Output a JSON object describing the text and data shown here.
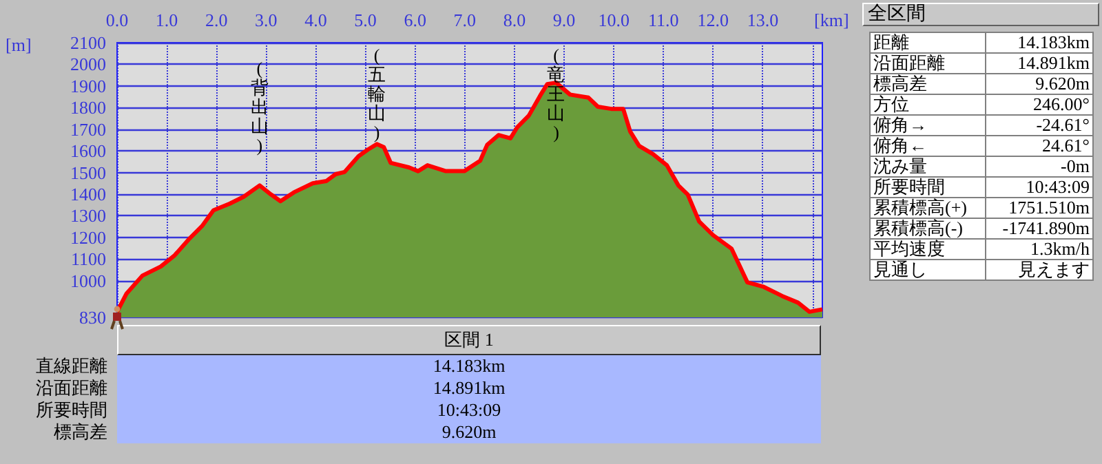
{
  "chart_data": [
    {
      "type": "area",
      "xlabel": "[km]",
      "ylabel": "[m]",
      "x": [
        0,
        0.19,
        0.51,
        0.88,
        1.16,
        1.44,
        1.71,
        1.94,
        2.27,
        2.55,
        2.87,
        3.1,
        3.29,
        3.56,
        3.94,
        4.21,
        4.4,
        4.58,
        4.86,
        5.05,
        5.23,
        5.37,
        5.51,
        5.88,
        6.06,
        6.25,
        6.62,
        6.99,
        7.31,
        7.45,
        7.68,
        7.92,
        8.06,
        8.29,
        8.52,
        8.66,
        8.84,
        9.12,
        9.49,
        9.68,
        9.95,
        10.19,
        10.33,
        10.51,
        10.79,
        11.07,
        11.3,
        11.49,
        11.72,
        12.0,
        12.37,
        12.69,
        13.02,
        13.39,
        13.71,
        13.94,
        14.2
      ],
      "series": [
        {
          "type": "area",
          "color": "#6a9c3a",
          "values": [
            856,
            940,
            1023,
            1065,
            1117,
            1190,
            1252,
            1325,
            1356,
            1388,
            1440,
            1398,
            1367,
            1408,
            1450,
            1460,
            1492,
            1502,
            1575,
            1606,
            1631,
            1617,
            1544,
            1523,
            1506,
            1533,
            1506,
            1506,
            1554,
            1627,
            1673,
            1658,
            1710,
            1763,
            1856,
            1908,
            1915,
            1860,
            1846,
            1804,
            1794,
            1794,
            1690,
            1623,
            1585,
            1533,
            1440,
            1398,
            1273,
            1210,
            1148,
            992,
            971,
            929,
            898,
            856,
            867
          ]
        },
        {
          "type": "line",
          "color": "#ff0000",
          "values": [
            856,
            940,
            1023,
            1065,
            1117,
            1190,
            1252,
            1325,
            1356,
            1388,
            1440,
            1398,
            1367,
            1408,
            1450,
            1460,
            1492,
            1502,
            1575,
            1606,
            1631,
            1617,
            1544,
            1523,
            1506,
            1533,
            1506,
            1506,
            1554,
            1627,
            1673,
            1658,
            1710,
            1763,
            1856,
            1908,
            1915,
            1860,
            1846,
            1804,
            1794,
            1794,
            1690,
            1623,
            1585,
            1533,
            1440,
            1398,
            1273,
            1210,
            1148,
            992,
            971,
            929,
            898,
            856,
            867
          ]
        }
      ],
      "xlim": [
        0,
        14.2
      ],
      "xticks": [
        {
          "value": 0,
          "label": "0.0"
        },
        {
          "value": 1,
          "label": "1.0"
        },
        {
          "value": 2,
          "label": "2.0"
        },
        {
          "value": 3,
          "label": "3.0"
        },
        {
          "value": 4,
          "label": "4.0"
        },
        {
          "value": 5,
          "label": "5.0"
        },
        {
          "value": 6,
          "label": "6.0"
        },
        {
          "value": 7,
          "label": "7.0"
        },
        {
          "value": 8,
          "label": "8.0"
        },
        {
          "value": 9,
          "label": "9.0"
        },
        {
          "value": 10,
          "label": "10.0"
        },
        {
          "value": 11,
          "label": "11.0"
        },
        {
          "value": 12,
          "label": "12.0"
        },
        {
          "value": 13,
          "label": "13.0"
        },
        {
          "value": 14,
          "label": null
        }
      ],
      "ylim": [
        830,
        2100
      ],
      "yticks": [
        830,
        1000,
        1100,
        1200,
        1300,
        1400,
        1500,
        1600,
        1700,
        1800,
        1900,
        2000,
        2100
      ],
      "grid": true,
      "annotations": [
        {
          "text": "(背出山)",
          "x": 2.87,
          "y": 1440
        },
        {
          "text": "(五輪山)",
          "x": 5.23,
          "y": 1631
        },
        {
          "text": "(竜王山)",
          "x": 8.84,
          "y": 1915
        }
      ]
    },
    {
      "type": "other",
      "title": "全区間",
      "categories": [
        "距離",
        "沿面距離",
        "標高差",
        "方位",
        "俯角→",
        "俯角←",
        "沈み量",
        "所要時間",
        "累積標高(+)",
        "累積標高(-)",
        "平均速度",
        "見通し"
      ],
      "value_labels": [
        "14.183km",
        "14.891km",
        "9.620m",
        "246.00°",
        "-24.61°",
        "24.61°",
        "-0m",
        "10:43:09",
        "1751.510m",
        "-1741.890m",
        "1.3km/h",
        "見えます"
      ]
    },
    {
      "type": "other",
      "title": "区間 1",
      "categories": [
        "直線距離",
        "沿面距離",
        "所要時間",
        "標高差"
      ],
      "value_labels": [
        "14.183km",
        "14.891km",
        "10:43:09",
        "9.620m"
      ]
    }
  ]
}
